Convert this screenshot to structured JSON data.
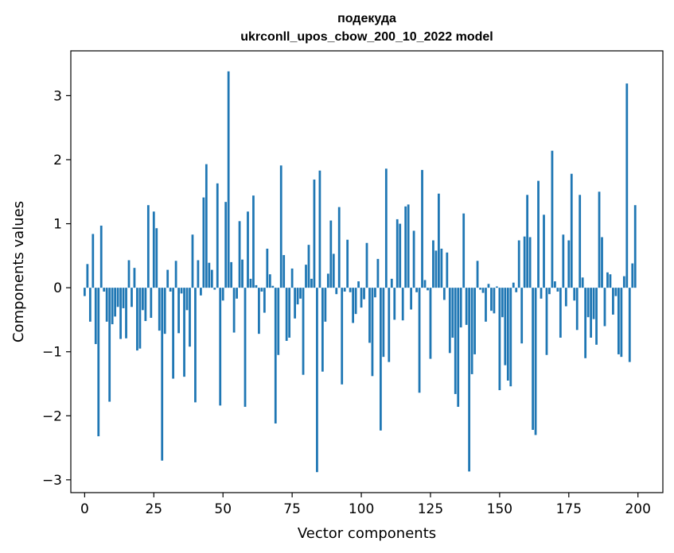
{
  "chart_data": {
    "type": "bar",
    "title": "подекуда",
    "subtitle": "ukrconll_upos_cbow_200_10_2022 model",
    "xlabel": "Vector components",
    "ylabel": "Components values",
    "xlim": [
      -5,
      209
    ],
    "ylim": [
      -3.2,
      3.7
    ],
    "xticks": [
      0,
      25,
      50,
      75,
      100,
      125,
      150,
      175,
      200
    ],
    "xtick_labels": [
      "0",
      "25",
      "50",
      "75",
      "100",
      "125",
      "150",
      "175",
      "200"
    ],
    "yticks": [
      -3,
      -2,
      -1,
      0,
      1,
      2,
      3
    ],
    "ytick_labels": [
      "−3",
      "−2",
      "−1",
      "0",
      "1",
      "2",
      "3"
    ],
    "grid": false,
    "bar_color": "#1f77b4",
    "x": [
      0,
      1,
      2,
      3,
      4,
      5,
      6,
      7,
      8,
      9,
      10,
      11,
      12,
      13,
      14,
      15,
      16,
      17,
      18,
      19,
      20,
      21,
      22,
      23,
      24,
      25,
      26,
      27,
      28,
      29,
      30,
      31,
      32,
      33,
      34,
      35,
      36,
      37,
      38,
      39,
      40,
      41,
      42,
      43,
      44,
      45,
      46,
      47,
      48,
      49,
      50,
      51,
      52,
      53,
      54,
      55,
      56,
      57,
      58,
      59,
      60,
      61,
      62,
      63,
      64,
      65,
      66,
      67,
      68,
      69,
      70,
      71,
      72,
      73,
      74,
      75,
      76,
      77,
      78,
      79,
      80,
      81,
      82,
      83,
      84,
      85,
      86,
      87,
      88,
      89,
      90,
      91,
      92,
      93,
      94,
      95,
      96,
      97,
      98,
      99,
      100,
      101,
      102,
      103,
      104,
      105,
      106,
      107,
      108,
      109,
      110,
      111,
      112,
      113,
      114,
      115,
      116,
      117,
      118,
      119,
      120,
      121,
      122,
      123,
      124,
      125,
      126,
      127,
      128,
      129,
      130,
      131,
      132,
      133,
      134,
      135,
      136,
      137,
      138,
      139,
      140,
      141,
      142,
      143,
      144,
      145,
      146,
      147,
      148,
      149,
      150,
      151,
      152,
      153,
      154,
      155,
      156,
      157,
      158,
      159,
      160,
      161,
      162,
      163,
      164,
      165,
      166,
      167,
      168,
      169,
      170,
      171,
      172,
      173,
      174,
      175,
      176,
      177,
      178,
      179,
      180,
      181,
      182,
      183,
      184,
      185,
      186,
      187,
      188,
      189,
      190,
      191,
      192,
      193,
      194,
      195,
      196,
      197,
      198,
      199
    ],
    "values": [
      -0.13,
      0.37,
      -0.53,
      0.84,
      -0.88,
      -2.32,
      0.97,
      -0.06,
      -0.53,
      -1.78,
      -0.57,
      -0.45,
      -0.3,
      -0.8,
      -0.32,
      -0.79,
      0.43,
      -0.3,
      0.31,
      -0.98,
      -0.95,
      -0.35,
      -0.52,
      1.29,
      -0.47,
      1.19,
      0.93,
      -0.67,
      -2.7,
      -0.72,
      0.28,
      -0.06,
      -1.42,
      0.42,
      -0.71,
      -0.09,
      -1.39,
      -0.35,
      -0.92,
      0.83,
      -1.79,
      0.43,
      -0.12,
      1.41,
      1.93,
      0.39,
      0.28,
      -0.03,
      1.63,
      -1.84,
      -0.2,
      1.34,
      3.38,
      0.4,
      -0.7,
      -0.17,
      1.04,
      0.44,
      -1.86,
      1.19,
      0.14,
      1.44,
      0.04,
      -0.72,
      -0.06,
      -0.39,
      0.61,
      0.21,
      0.03,
      -2.12,
      -1.05,
      1.91,
      0.51,
      -0.83,
      -0.78,
      0.3,
      -0.48,
      -0.26,
      -0.17,
      -1.36,
      0.36,
      0.67,
      0.14,
      1.69,
      -2.88,
      1.83,
      -1.31,
      -0.53,
      0.22,
      1.05,
      0.53,
      -0.1,
      1.26,
      -1.51,
      -0.06,
      0.75,
      -0.07,
      -0.55,
      -0.41,
      0.1,
      -0.31,
      -0.18,
      0.7,
      -0.86,
      -1.38,
      -0.15,
      0.45,
      -2.23,
      -1.08,
      1.86,
      -1.16,
      0.14,
      -0.5,
      1.07,
      1.0,
      -0.51,
      1.27,
      1.3,
      -0.34,
      0.89,
      -0.07,
      -1.64,
      1.84,
      0.12,
      -0.04,
      -1.11,
      0.74,
      0.58,
      1.47,
      0.61,
      -0.19,
      0.55,
      -1.02,
      -0.78,
      -1.66,
      -1.86,
      -0.62,
      1.16,
      -0.58,
      -2.87,
      -1.35,
      -1.04,
      0.42,
      -0.03,
      -0.08,
      -0.53,
      0.06,
      -0.36,
      -0.4,
      0.02,
      -1.6,
      -0.46,
      -1.21,
      -1.45,
      -1.54,
      0.08,
      -0.07,
      0.74,
      -0.87,
      0.8,
      1.45,
      0.79,
      -2.22,
      -2.3,
      1.67,
      -0.17,
      1.14,
      -1.05,
      -0.1,
      2.14,
      0.1,
      -0.06,
      -0.78,
      0.83,
      -0.29,
      0.74,
      1.78,
      -0.2,
      -0.66,
      1.45,
      0.16,
      -1.1,
      -0.46,
      -0.78,
      -0.49,
      -0.89,
      1.5,
      0.79,
      -0.6,
      0.24,
      0.21,
      -0.42,
      -0.13,
      -1.04,
      -1.08,
      0.18,
      3.19,
      -1.16,
      0.38,
      1.29
    ]
  }
}
